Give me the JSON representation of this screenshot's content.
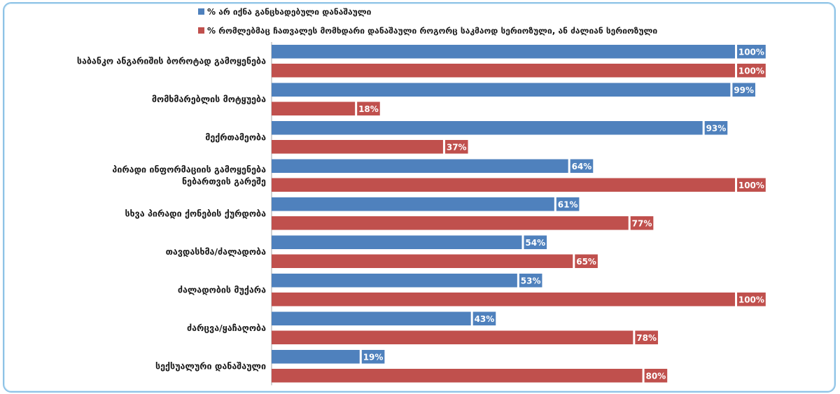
{
  "chart_data": {
    "type": "bar",
    "orientation": "horizontal",
    "xlim": [
      0,
      100
    ],
    "grid": false,
    "legend_position": "top",
    "categories": [
      "საბანკო ანგარიშის ბოროტად გამოყენება",
      "მომხმარებლის მოტყუება",
      "მექრთამეობა",
      "პირადი ინფორმაციის გამოყენება ნებართვის გარეშე",
      "სხვა პირადი ქონების ქურდობა",
      "თავდასხმა/ძალადობა",
      "ძალადობის მუქარა",
      "ძარცვა/ყაჩაღობა",
      "სექსუალური დანაშაული"
    ],
    "series": [
      {
        "name": "% არ იქნა განცხადებული დანაშაული",
        "color": "#4f81bd",
        "values": [
          100,
          99,
          93,
          64,
          61,
          54,
          53,
          43,
          19
        ],
        "labels": [
          "100%",
          "99%",
          "93%",
          "64%",
          "61%",
          "54%",
          "53%",
          "43%",
          "19%"
        ]
      },
      {
        "name": "% რომლებმაც ჩათვალეს მომხდარი დანაშაული როგორც საკმაოდ სერიოზული, ან ძალიან სერიოზული",
        "color": "#c0504d",
        "values": [
          100,
          18,
          37,
          100,
          77,
          65,
          100,
          78,
          80
        ],
        "labels": [
          "100%",
          "18%",
          "37%",
          "100%",
          "77%",
          "65%",
          "100%",
          "78%",
          "80%"
        ]
      }
    ]
  }
}
